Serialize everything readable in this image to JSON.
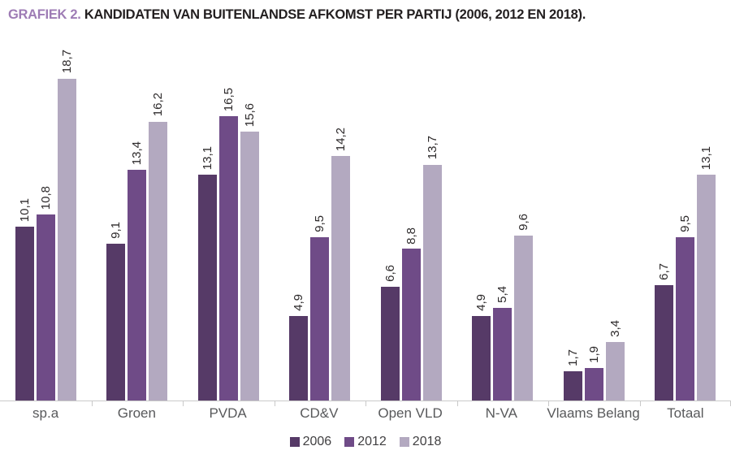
{
  "title": {
    "prefix": "GRAFIEK 2.",
    "text": "KANDIDATEN VAN BUITENLANDSE AFKOMST PER PARTIJ (2006, 2012 EN 2018)."
  },
  "chart_data": {
    "type": "bar",
    "categories": [
      "sp.a",
      "Groen",
      "PVDA",
      "CD&V",
      "Open VLD",
      "N-VA",
      "Vlaams Belang",
      "Totaal"
    ],
    "series": [
      {
        "name": "2006",
        "color": "#563a67",
        "values": [
          10.1,
          9.1,
          13.1,
          4.9,
          6.6,
          4.9,
          1.7,
          6.7
        ]
      },
      {
        "name": "2012",
        "color": "#6f4b87",
        "values": [
          10.8,
          13.4,
          16.5,
          9.5,
          8.8,
          5.4,
          1.9,
          9.5
        ]
      },
      {
        "name": "2018",
        "color": "#b3a9c0",
        "values": [
          18.7,
          16.2,
          15.6,
          14.2,
          13.7,
          9.6,
          3.4,
          13.1
        ]
      }
    ],
    "value_labels": true,
    "decimal_separator": ",",
    "ylim": [
      0,
      20
    ],
    "grid": false,
    "legend_position": "bottom",
    "xlabel": "",
    "ylabel": ""
  },
  "style": {
    "title_accent_color": "#9e7cb5",
    "title_text_color": "#231f20",
    "value_label_color": "#2d2a2b",
    "category_label_color": "#58595b",
    "legend_text_color": "#414042",
    "axis_color": "#c9c9c9"
  }
}
